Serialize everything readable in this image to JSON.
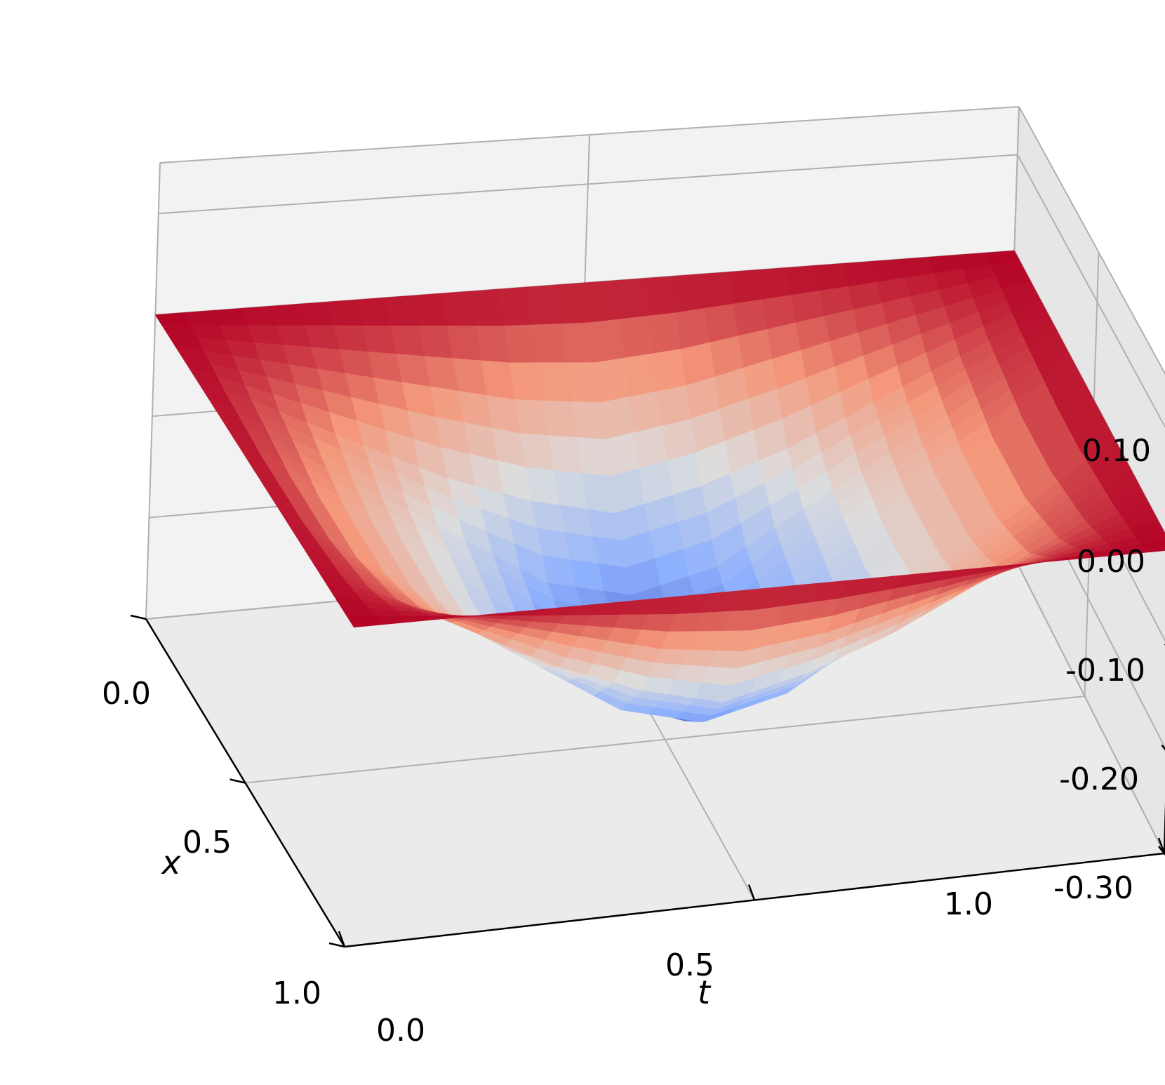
{
  "chart_data": {
    "type": "surface",
    "title": "",
    "xlabel": "x",
    "ylabel": "t",
    "zlabel": "",
    "x_ticks": [
      "0.0",
      "0.5",
      "1.0"
    ],
    "t_ticks": [
      "0.0",
      "0.5",
      "1.0"
    ],
    "z_ticks": [
      "0.10",
      "0.00",
      "-0.10",
      "-0.20",
      "-0.30"
    ],
    "x_range": [
      0,
      1
    ],
    "t_range": [
      0,
      1
    ],
    "z_range": [
      -0.3,
      0.15
    ],
    "grid": true,
    "colormap": "coolwarm",
    "surface": {
      "x": [
        0,
        0.1,
        0.2,
        0.3,
        0.4,
        0.5,
        0.6,
        0.7,
        0.8,
        0.9,
        1.0
      ],
      "t": [
        0,
        0.1,
        0.2,
        0.3,
        0.4,
        0.5,
        0.6,
        0.7,
        0.8,
        0.9,
        1.0
      ],
      "z": [
        [
          0,
          0,
          0,
          0,
          0,
          0,
          0,
          0,
          0,
          0,
          0
        ],
        [
          0,
          -0.02,
          -0.04,
          -0.06,
          -0.08,
          -0.09,
          -0.08,
          -0.06,
          -0.04,
          -0.02,
          0
        ],
        [
          0,
          -0.04,
          -0.08,
          -0.12,
          -0.15,
          -0.17,
          -0.15,
          -0.12,
          -0.08,
          -0.04,
          0
        ],
        [
          0,
          -0.05,
          -0.1,
          -0.15,
          -0.2,
          -0.22,
          -0.2,
          -0.15,
          -0.1,
          -0.05,
          0
        ],
        [
          0,
          -0.06,
          -0.11,
          -0.16,
          -0.22,
          -0.25,
          -0.22,
          -0.16,
          -0.11,
          -0.06,
          0
        ],
        [
          0,
          -0.06,
          -0.11,
          -0.17,
          -0.23,
          -0.27,
          -0.23,
          -0.17,
          -0.11,
          -0.06,
          0
        ],
        [
          0,
          -0.06,
          -0.11,
          -0.16,
          -0.22,
          -0.25,
          -0.22,
          -0.16,
          -0.11,
          -0.06,
          0
        ],
        [
          0,
          -0.05,
          -0.1,
          -0.15,
          -0.2,
          -0.22,
          -0.2,
          -0.15,
          -0.1,
          -0.05,
          0
        ],
        [
          0,
          -0.04,
          -0.08,
          -0.12,
          -0.15,
          -0.17,
          -0.15,
          -0.12,
          -0.08,
          -0.04,
          0
        ],
        [
          0,
          -0.02,
          -0.04,
          -0.06,
          -0.08,
          -0.09,
          -0.08,
          -0.06,
          -0.04,
          -0.02,
          0
        ],
        [
          0,
          0,
          0,
          0,
          0,
          0,
          0,
          0,
          0,
          0,
          0
        ]
      ]
    }
  }
}
